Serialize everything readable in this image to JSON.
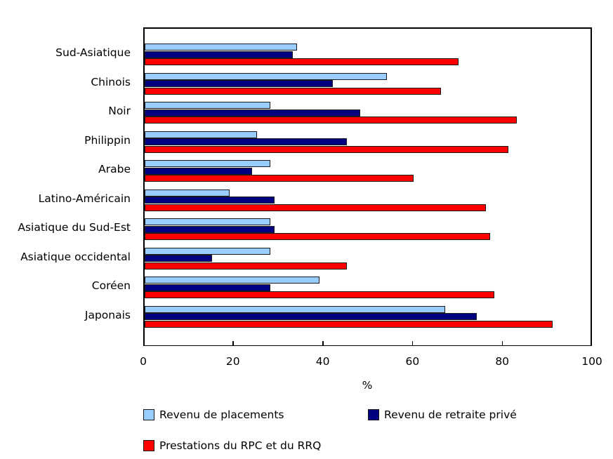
{
  "chart_data": {
    "type": "bar",
    "orientation": "horizontal",
    "title": "",
    "xlabel": "%",
    "ylabel": "",
    "xlim": [
      0,
      100
    ],
    "xticks": [
      0,
      20,
      40,
      60,
      80,
      100
    ],
    "grid": false,
    "legend_position": "bottom",
    "categories": [
      "Sud-Asiatique",
      "Chinois",
      "Noir",
      "Philippin",
      "Arabe",
      "Latino-Américain",
      "Asiatique du Sud-Est",
      "Asiatique occidental",
      "Coréen",
      "Japonais"
    ],
    "series": [
      {
        "name": "Revenu de placements",
        "color": "#99ccff",
        "values": [
          34,
          54,
          28,
          25,
          28,
          19,
          28,
          28,
          39,
          67
        ]
      },
      {
        "name": "Revenu de retraite privé",
        "color": "#000080",
        "values": [
          33,
          42,
          48,
          45,
          24,
          29,
          29,
          15,
          28,
          74
        ]
      },
      {
        "name": "Prestations du RPC et du RRQ",
        "color": "#ff0000",
        "values": [
          70,
          66,
          83,
          81,
          60,
          76,
          77,
          45,
          78,
          91
        ]
      }
    ]
  },
  "legend": {
    "items": [
      {
        "label": "Revenu de placements",
        "color": "#99ccff"
      },
      {
        "label": "Revenu de retraite privé",
        "color": "#000080"
      },
      {
        "label": "Prestations du RPC et du RRQ",
        "color": "#ff0000"
      }
    ]
  }
}
